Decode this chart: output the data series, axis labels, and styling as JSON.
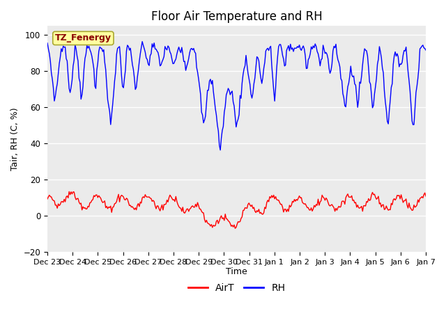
{
  "title": "Floor Air Temperature and RH",
  "ylabel": "Tair, RH (C, %)",
  "xlabel": "Time",
  "ylim": [
    -20,
    105
  ],
  "yticks": [
    -20,
    0,
    20,
    40,
    60,
    80,
    100
  ],
  "xtick_labels": [
    "Dec 23",
    "Dec 24",
    "Dec 25",
    "Dec 26",
    "Dec 27",
    "Dec 28",
    "Dec 29",
    "Dec 30",
    "Dec 31",
    "Jan 1",
    "Jan 2",
    "Jan 3",
    "Jan 4",
    "Jan 5",
    "Jan 6",
    "Jan 7"
  ],
  "annotation_text": "TZ_Fenergy",
  "bg_color": "#ebebeb",
  "fig_color": "#ffffff",
  "air_color": "#ff0000",
  "rh_color": "#0000ff",
  "legend_labels": [
    "AirT",
    "RH"
  ],
  "title_fontsize": 12,
  "axis_label_fontsize": 9,
  "tick_fontsize": 8.5
}
